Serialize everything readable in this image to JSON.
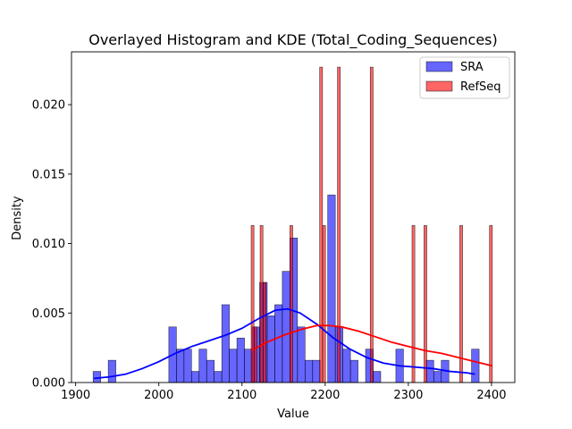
{
  "chart_data": {
    "type": "histogram",
    "title": "Overlayed Histogram and KDE (Total_Coding_Sequences)",
    "xlabel": "Value",
    "ylabel": "Density",
    "xlim": [
      1895,
      2428
    ],
    "ylim": [
      0,
      0.0238
    ],
    "x_ticks": [
      1900,
      2000,
      2100,
      2200,
      2300,
      2400
    ],
    "y_ticks": [
      0.0,
      0.005,
      0.01,
      0.015,
      0.02
    ],
    "y_tick_labels": [
      "0.000",
      "0.005",
      "0.010",
      "0.015",
      "0.020"
    ],
    "legend": {
      "position": "top-right"
    },
    "series": [
      {
        "name": "SRA",
        "kind": "histogram",
        "color": "#0000ff",
        "bin_width": 9.1,
        "bins": [
          {
            "x0": 1921.0,
            "h": 0.0008
          },
          {
            "x0": 1939.2,
            "h": 0.0016
          },
          {
            "x0": 2012.0,
            "h": 0.004
          },
          {
            "x0": 2021.1,
            "h": 0.0024
          },
          {
            "x0": 2030.2,
            "h": 0.0024
          },
          {
            "x0": 2039.3,
            "h": 0.0008
          },
          {
            "x0": 2048.4,
            "h": 0.0024
          },
          {
            "x0": 2057.5,
            "h": 0.0016
          },
          {
            "x0": 2066.6,
            "h": 0.0008
          },
          {
            "x0": 2075.7,
            "h": 0.0056
          },
          {
            "x0": 2084.8,
            "h": 0.0024
          },
          {
            "x0": 2093.9,
            "h": 0.0032
          },
          {
            "x0": 2103.0,
            "h": 0.0024
          },
          {
            "x0": 2112.1,
            "h": 0.004
          },
          {
            "x0": 2121.2,
            "h": 0.0072
          },
          {
            "x0": 2130.3,
            "h": 0.0048
          },
          {
            "x0": 2139.4,
            "h": 0.0056
          },
          {
            "x0": 2148.5,
            "h": 0.008
          },
          {
            "x0": 2157.6,
            "h": 0.0104
          },
          {
            "x0": 2166.7,
            "h": 0.004
          },
          {
            "x0": 2175.8,
            "h": 0.0016
          },
          {
            "x0": 2184.9,
            "h": 0.0016
          },
          {
            "x0": 2203.1,
            "h": 0.0135
          },
          {
            "x0": 2212.2,
            "h": 0.004
          },
          {
            "x0": 2221.3,
            "h": 0.0024
          },
          {
            "x0": 2230.4,
            "h": 0.0016
          },
          {
            "x0": 2248.6,
            "h": 0.0024
          },
          {
            "x0": 2257.7,
            "h": 0.0008
          },
          {
            "x0": 2285.0,
            "h": 0.0024
          },
          {
            "x0": 2321.4,
            "h": 0.0016
          },
          {
            "x0": 2330.5,
            "h": 0.0008
          },
          {
            "x0": 2339.6,
            "h": 0.0016
          },
          {
            "x0": 2376.0,
            "h": 0.0024
          }
        ],
        "kde": {
          "x": [
            1922,
            1940,
            1960,
            1980,
            2000,
            2020,
            2040,
            2060,
            2080,
            2100,
            2120,
            2140,
            2155,
            2170,
            2190,
            2210,
            2230,
            2250,
            2270,
            2290,
            2310,
            2330,
            2350,
            2370,
            2380
          ],
          "y": [
            0.0003,
            0.0004,
            0.0006,
            0.001,
            0.0015,
            0.0021,
            0.0026,
            0.003,
            0.0034,
            0.0039,
            0.0046,
            0.0052,
            0.0053,
            0.005,
            0.0042,
            0.0032,
            0.0024,
            0.0018,
            0.0014,
            0.0012,
            0.0011,
            0.001,
            0.0008,
            0.0007,
            0.0006
          ]
        }
      },
      {
        "name": "RefSeq",
        "kind": "histogram",
        "color": "#ff0000",
        "bin_width": 3.4,
        "bins": [
          {
            "x0": 2111.0,
            "h": 0.0113
          },
          {
            "x0": 2114.6,
            "h": 0.004
          },
          {
            "x0": 2121.8,
            "h": 0.0113
          },
          {
            "x0": 2125.4,
            "h": 0.0072
          },
          {
            "x0": 2157.6,
            "h": 0.0113
          },
          {
            "x0": 2193.4,
            "h": 0.0227
          },
          {
            "x0": 2197.0,
            "h": 0.0113
          },
          {
            "x0": 2214.8,
            "h": 0.0227
          },
          {
            "x0": 2254.2,
            "h": 0.0227
          },
          {
            "x0": 2304.4,
            "h": 0.0113
          },
          {
            "x0": 2318.8,
            "h": 0.0113
          },
          {
            "x0": 2361.8,
            "h": 0.0113
          },
          {
            "x0": 2397.6,
            "h": 0.0113
          }
        ],
        "kde": {
          "x": [
            2111,
            2130,
            2150,
            2170,
            2190,
            2205,
            2220,
            2240,
            2260,
            2280,
            2300,
            2320,
            2340,
            2360,
            2380,
            2401
          ],
          "y": [
            0.0023,
            0.0029,
            0.0034,
            0.0038,
            0.0041,
            0.0041,
            0.004,
            0.0037,
            0.0033,
            0.0029,
            0.0026,
            0.0023,
            0.0021,
            0.0018,
            0.0015,
            0.0012
          ]
        }
      }
    ]
  }
}
